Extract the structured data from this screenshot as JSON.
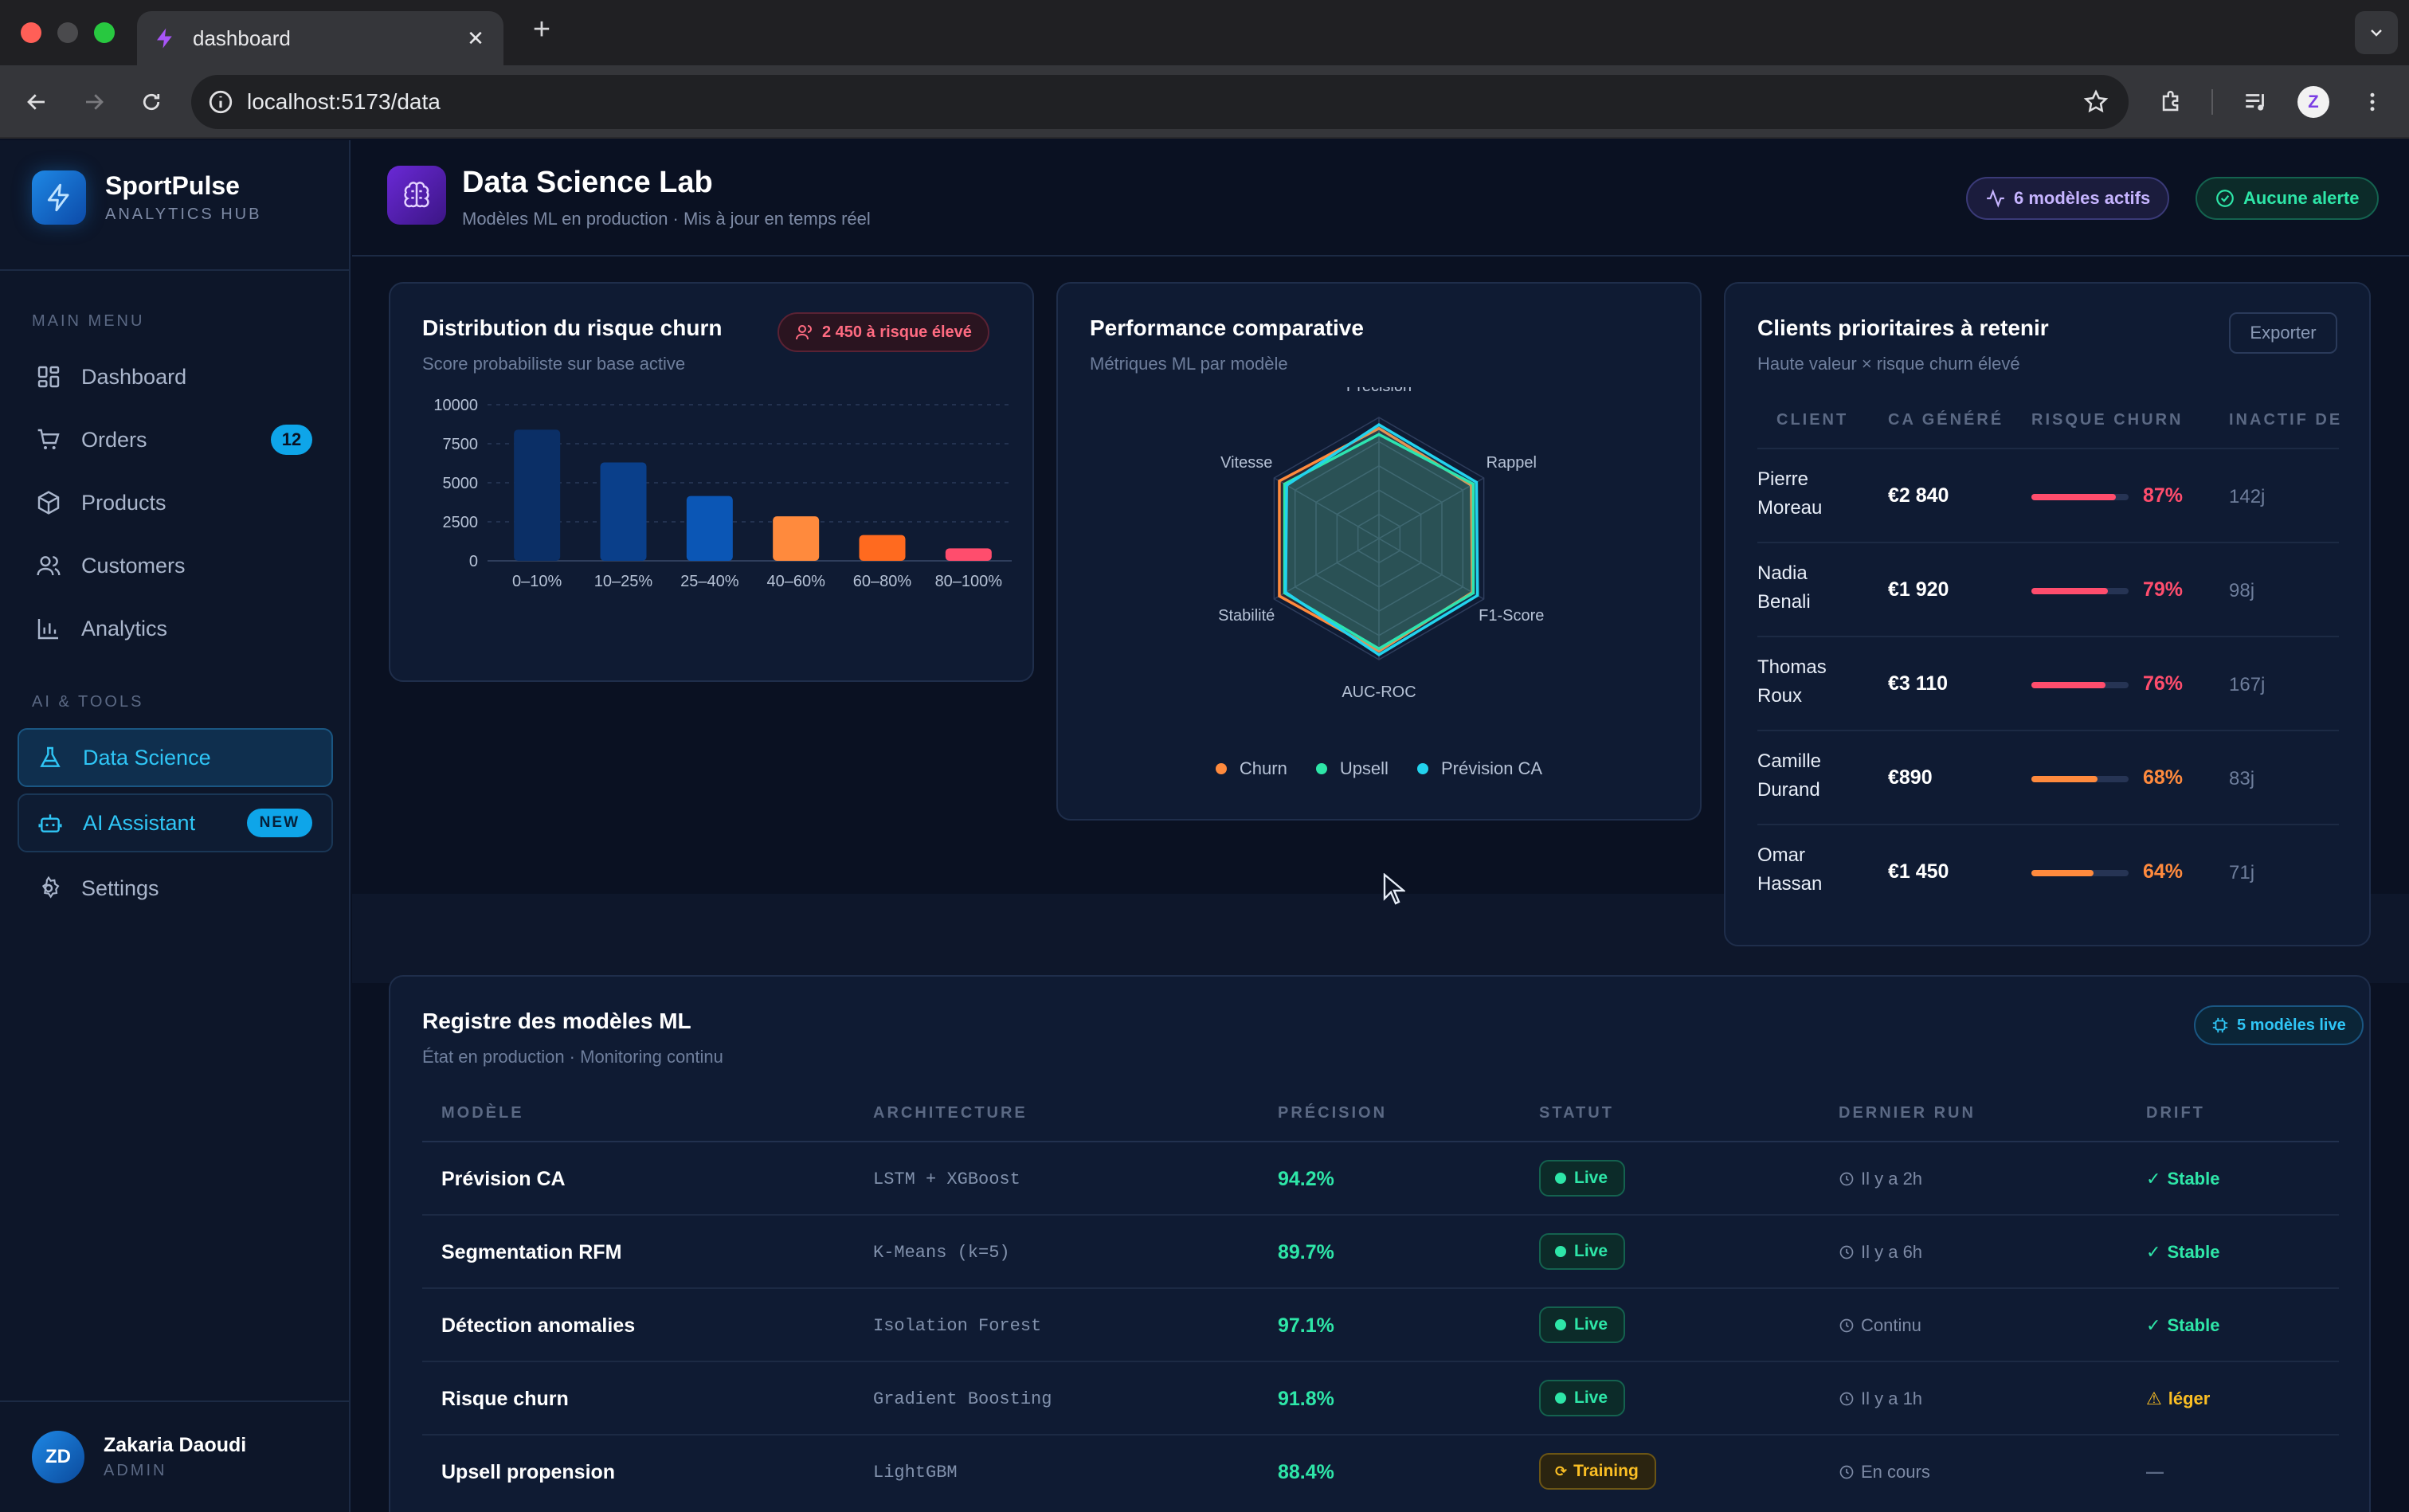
{
  "browser": {
    "tab_title": "dashboard",
    "url": "localhost:5173/data",
    "profile_initial": "Z"
  },
  "sidebar": {
    "brand_name": "SportPulse",
    "brand_sub": "ANALYTICS HUB",
    "main_menu_label": "MAIN MENU",
    "ai_tools_label": "AI & TOOLS",
    "items": [
      {
        "label": "Dashboard",
        "icon": "grid-icon"
      },
      {
        "label": "Orders",
        "icon": "cart-icon",
        "badge": "12"
      },
      {
        "label": "Products",
        "icon": "box-icon"
      },
      {
        "label": "Customers",
        "icon": "users-icon"
      },
      {
        "label": "Analytics",
        "icon": "bar-chart-icon"
      },
      {
        "label": "Data Science",
        "icon": "flask-icon"
      },
      {
        "label": "AI Assistant",
        "icon": "bot-icon",
        "badge": "NEW"
      },
      {
        "label": "Settings",
        "icon": "gear-icon"
      }
    ],
    "user": {
      "initials": "ZD",
      "name": "Zakaria Daoudi",
      "role": "ADMIN"
    }
  },
  "header": {
    "title": "Data Science Lab",
    "subtitle": "Modèles ML en production · Mis à jour en temps réel",
    "models_active": "6 modèles actifs",
    "alerts": "Aucune alerte"
  },
  "churn_card": {
    "title": "Distribution du risque churn",
    "subtitle": "Score probabiliste sur base active",
    "badge": "2 450 à risque élevé"
  },
  "perf_card": {
    "title": "Performance comparative",
    "subtitle": "Métriques ML par modèle"
  },
  "clients_card": {
    "title": "Clients prioritaires à retenir",
    "subtitle": "Haute valeur × risque churn élevé",
    "export_label": "Exporter",
    "columns": [
      "CLIENT",
      "CA GÉNÉRÉ",
      "RISQUE CHURN",
      "INACTIF DE"
    ],
    "rows": [
      {
        "first": "Pierre",
        "last": "Moreau",
        "ca": "€2 840",
        "risk": "87%",
        "risk_value": 87,
        "inactive": "142j"
      },
      {
        "first": "Nadia",
        "last": "Benali",
        "ca": "€1 920",
        "risk": "79%",
        "risk_value": 79,
        "inactive": "98j"
      },
      {
        "first": "Thomas",
        "last": "Roux",
        "ca": "€3 110",
        "risk": "76%",
        "risk_value": 76,
        "inactive": "167j"
      },
      {
        "first": "Camille",
        "last": "Durand",
        "ca": "€890",
        "risk": "68%",
        "risk_value": 68,
        "inactive": "83j"
      },
      {
        "first": "Omar",
        "last": "Hassan",
        "ca": "€1 450",
        "risk": "64%",
        "risk_value": 64,
        "inactive": "71j"
      }
    ]
  },
  "registry": {
    "title": "Registre des modèles ML",
    "subtitle": "État en production · Monitoring continu",
    "badge": "5 modèles live",
    "columns": [
      "MODÈLE",
      "ARCHITECTURE",
      "PRÉCISION",
      "STATUT",
      "DERNIER RUN",
      "DRIFT"
    ],
    "rows": [
      {
        "model": "Prévision CA",
        "arch": "LSTM + XGBoost",
        "precision": "94.2%",
        "status": "Live",
        "last_run": "Il y a 2h",
        "drift": "Stable"
      },
      {
        "model": "Segmentation RFM",
        "arch": "K-Means (k=5)",
        "precision": "89.7%",
        "status": "Live",
        "last_run": "Il y a 6h",
        "drift": "Stable"
      },
      {
        "model": "Détection anomalies",
        "arch": "Isolation Forest",
        "precision": "97.1%",
        "status": "Live",
        "last_run": "Continu",
        "drift": "Stable"
      },
      {
        "model": "Risque churn",
        "arch": "Gradient Boosting",
        "precision": "91.8%",
        "status": "Live",
        "last_run": "Il y a 1h",
        "drift": "léger"
      },
      {
        "model": "Upsell propension",
        "arch": "LightGBM",
        "precision": "88.4%",
        "status": "Training",
        "last_run": "En cours",
        "drift": "—"
      }
    ]
  },
  "colors": {
    "accent": "#2fc6f6",
    "churn": "#ff8a3d",
    "upsell": "#2ee6a8",
    "prevision": "#22d3ee",
    "danger": "#ff4d6d",
    "warning": "#fbbf24"
  },
  "chart_data": [
    {
      "type": "bar",
      "title": "Distribution du risque churn",
      "subtitle": "Score probabiliste sur base active",
      "categories": [
        "0–10%",
        "10–25%",
        "25–40%",
        "40–60%",
        "60–80%",
        "80–100%"
      ],
      "values": [
        8400,
        6300,
        4150,
        2850,
        1650,
        800
      ],
      "colors": [
        "#0b2f66",
        "#0a3f8a",
        "#0b56b5",
        "#ff8a3d",
        "#ff6a1f",
        "#ff4d6d"
      ],
      "yticks": [
        "10000",
        "7500",
        "5000",
        "2500",
        "0"
      ],
      "ylim": [
        0,
        10000
      ],
      "grid": true
    },
    {
      "type": "radar",
      "title": "Performance comparative",
      "subtitle": "Métriques ML par modèle",
      "axes": [
        "Précision",
        "Rappel",
        "F1-Score",
        "AUC-ROC",
        "Stabilité",
        "Vitesse"
      ],
      "range": [
        0,
        100
      ],
      "legend_position": "bottom",
      "series": [
        {
          "name": "Churn",
          "color": "#ff8a3d",
          "values": [
            91,
            88,
            89,
            93,
            95,
            95
          ]
        },
        {
          "name": "Upsell",
          "color": "#2ee6a8",
          "values": [
            86,
            90,
            90,
            91,
            90,
            90
          ]
        },
        {
          "name": "Prévision CA",
          "color": "#22d3ee",
          "values": [
            94,
            93,
            94,
            96,
            89,
            88
          ]
        }
      ]
    }
  ]
}
